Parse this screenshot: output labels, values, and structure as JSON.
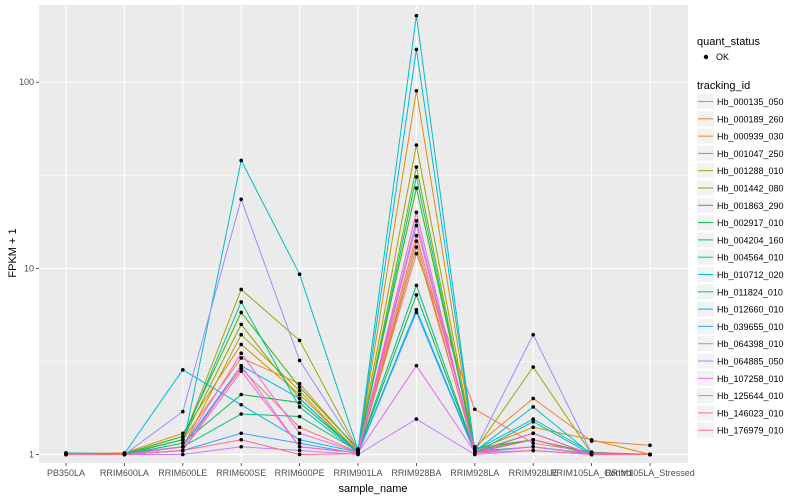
{
  "chart_data": {
    "type": "line",
    "xlabel": "sample_name",
    "ylabel": "FPKM + 1",
    "y_scale": "log10",
    "ylim": [
      0.9,
      260
    ],
    "y_ticks": [
      1,
      10,
      100
    ],
    "y_tick_labels": [
      "1",
      "10",
      "100"
    ],
    "grid": true,
    "background": "#ebebeb",
    "categories": [
      "PB350LA",
      "RRIM600LA",
      "RRIM600LE",
      "RRIM600SE",
      "RRIM600PE",
      "RRIM901LA",
      "RRIM928BA",
      "RRIM928LA",
      "RRIM928LE",
      "RRIM105LA_Control",
      "RRIM105LA_Stressed"
    ],
    "x_tick_labels": [
      "PB350LA",
      "RRIM600LA",
      "RRIM600LE",
      "RRIM600SE",
      "RRIM600PE",
      "RRIM901LA",
      "RRIM928BA",
      "RRIM928LA",
      "RRIM928LE",
      "RRIM105LA_Control",
      "RRIM105LA_Stressed"
    ],
    "point_legend": {
      "title": "quant_status",
      "label": "OK"
    },
    "line_legend_title": "tracking_id",
    "legend_position": "right",
    "series": [
      {
        "name": "Hb_000135_050",
        "color": "#F8766D",
        "values": [
          1.02,
          1.01,
          1.1,
          2.9,
          1.4,
          1.03,
          12.0,
          1.75,
          1.15,
          1.03,
          1.0
        ]
      },
      {
        "name": "Hb_000189_260",
        "color": "#EA8331",
        "values": [
          1.0,
          1.01,
          1.2,
          3.3,
          2.4,
          1.05,
          15.0,
          1.1,
          2.0,
          1.18,
          1.12
        ]
      },
      {
        "name": "Hb_000939_030",
        "color": "#D89000",
        "values": [
          1.01,
          1.02,
          1.3,
          3.9,
          2.1,
          1.04,
          90.0,
          1.05,
          1.4,
          1.2,
          1.0
        ]
      },
      {
        "name": "Hb_001047_250",
        "color": "#C09B00",
        "values": [
          1.0,
          1.0,
          1.1,
          4.4,
          2.2,
          1.02,
          13.0,
          1.05,
          1.2,
          1.0,
          1.0
        ]
      },
      {
        "name": "Hb_001288_010",
        "color": "#A3A500",
        "values": [
          1.0,
          1.01,
          1.2,
          7.7,
          4.1,
          1.06,
          46.0,
          1.05,
          2.95,
          1.01,
          1.0
        ]
      },
      {
        "name": "Hb_001442_080",
        "color": "#7CAE00",
        "values": [
          1.01,
          1.0,
          1.2,
          5.0,
          2.0,
          1.03,
          35.0,
          1.04,
          1.3,
          1.0,
          1.0
        ]
      },
      {
        "name": "Hb_001863_290",
        "color": "#39B600",
        "values": [
          1.0,
          1.01,
          1.25,
          5.8,
          2.3,
          1.07,
          27.0,
          1.08,
          1.2,
          1.02,
          1.0
        ]
      },
      {
        "name": "Hb_002917_010",
        "color": "#00BB4E",
        "values": [
          1.0,
          1.0,
          1.15,
          2.1,
          1.9,
          1.03,
          7.2,
          1.03,
          1.3,
          1.0,
          1.0
        ]
      },
      {
        "name": "Hb_004204_160",
        "color": "#00BF7D",
        "values": [
          1.01,
          1.0,
          1.1,
          1.65,
          1.6,
          1.04,
          8.1,
          1.04,
          1.1,
          1.01,
          1.0
        ]
      },
      {
        "name": "Hb_004564_010",
        "color": "#00C1A3",
        "values": [
          1.0,
          1.0,
          1.2,
          6.6,
          1.8,
          1.02,
          31.0,
          1.02,
          1.5,
          1.0,
          1.0
        ]
      },
      {
        "name": "Hb_010712_020",
        "color": "#00BFC4",
        "values": [
          1.02,
          1.01,
          1.1,
          38.0,
          9.3,
          1.06,
          228.0,
          1.04,
          1.8,
          1.0,
          1.0
        ]
      },
      {
        "name": "Hb_011824_010",
        "color": "#00BAE0",
        "values": [
          1.0,
          1.01,
          2.85,
          1.85,
          1.2,
          1.03,
          150.0,
          1.05,
          1.55,
          1.02,
          1.0
        ]
      },
      {
        "name": "Hb_012660_010",
        "color": "#00B0F6",
        "values": [
          1.0,
          1.0,
          1.1,
          3.0,
          2.0,
          1.02,
          6.0,
          1.03,
          1.2,
          1.0,
          1.0
        ]
      },
      {
        "name": "Hb_039655_010",
        "color": "#35A2FF",
        "values": [
          1.01,
          1.0,
          1.05,
          1.3,
          1.15,
          1.01,
          5.8,
          1.02,
          1.1,
          1.0,
          1.0
        ]
      },
      {
        "name": "Hb_064398_010",
        "color": "#9590FF",
        "values": [
          1.0,
          1.0,
          1.7,
          23.5,
          3.2,
          1.05,
          18.0,
          1.05,
          4.4,
          1.01,
          1.0
        ]
      },
      {
        "name": "Hb_064885_050",
        "color": "#C77CFF",
        "values": [
          1.0,
          1.0,
          1.0,
          1.1,
          1.05,
          1.0,
          1.55,
          1.0,
          1.05,
          1.0,
          1.0
        ]
      },
      {
        "name": "Hb_107258_010",
        "color": "#E76BF3",
        "values": [
          1.01,
          1.0,
          1.05,
          3.0,
          1.1,
          1.02,
          3.0,
          1.03,
          1.1,
          1.0,
          1.0
        ]
      },
      {
        "name": "Hb_125644_010",
        "color": "#FA62DB",
        "values": [
          1.0,
          1.0,
          1.1,
          3.5,
          1.3,
          1.03,
          17.0,
          1.04,
          1.3,
          1.0,
          1.0
        ]
      },
      {
        "name": "Hb_146023_010",
        "color": "#FF62BC",
        "values": [
          1.0,
          1.0,
          1.05,
          2.8,
          1.1,
          1.02,
          20.0,
          1.02,
          1.2,
          1.0,
          1.0
        ]
      },
      {
        "name": "Hb_176979_010",
        "color": "#FF6C91",
        "values": [
          1.0,
          1.0,
          1.05,
          1.2,
          1.0,
          1.01,
          14.0,
          1.02,
          1.05,
          1.0,
          1.0
        ]
      }
    ]
  }
}
